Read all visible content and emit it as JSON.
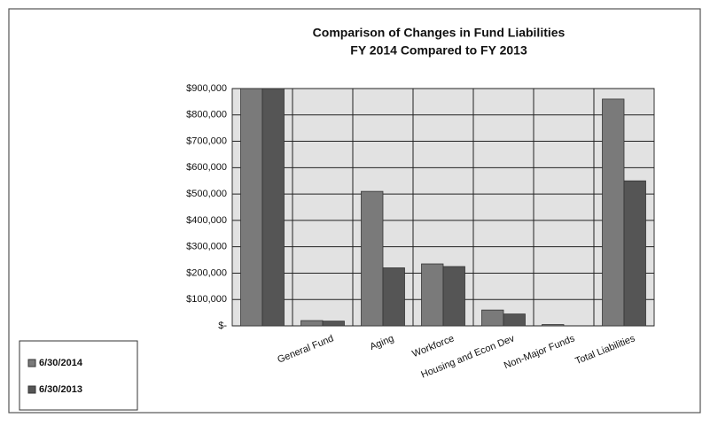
{
  "chart_data": {
    "type": "bar",
    "title": "Comparison of Changes in Fund Liabilities",
    "subtitle": "FY 2014 Compared to FY 2013",
    "categories": [
      null,
      "General Fund",
      "Aging",
      "Workforce",
      "Housing and Econ Dev",
      "Non-Major Funds",
      "Total Liabilities"
    ],
    "series": [
      {
        "name": "6/30/2014",
        "color": "#7a7a7a",
        "values": [
          900000,
          20000,
          510000,
          235000,
          60000,
          5000,
          860000
        ]
      },
      {
        "name": "6/30/2013",
        "color": "#555555",
        "values": [
          900000,
          18000,
          220000,
          225000,
          45000,
          0,
          550000
        ]
      }
    ],
    "ylim": [
      0,
      900000
    ],
    "yticks": [
      {
        "value": 0,
        "label": "$-"
      },
      {
        "value": 100000,
        "label": "$100,000"
      },
      {
        "value": 200000,
        "label": "$200,000"
      },
      {
        "value": 300000,
        "label": "$300,000"
      },
      {
        "value": 400000,
        "label": "$400,000"
      },
      {
        "value": 500000,
        "label": "$500,000"
      },
      {
        "value": 600000,
        "label": "$600,000"
      },
      {
        "value": 700000,
        "label": "$700,000"
      },
      {
        "value": 800000,
        "label": "$800,000"
      },
      {
        "value": 900000,
        "label": "$900,000"
      }
    ],
    "grid": true,
    "legend": "bottom-left"
  }
}
